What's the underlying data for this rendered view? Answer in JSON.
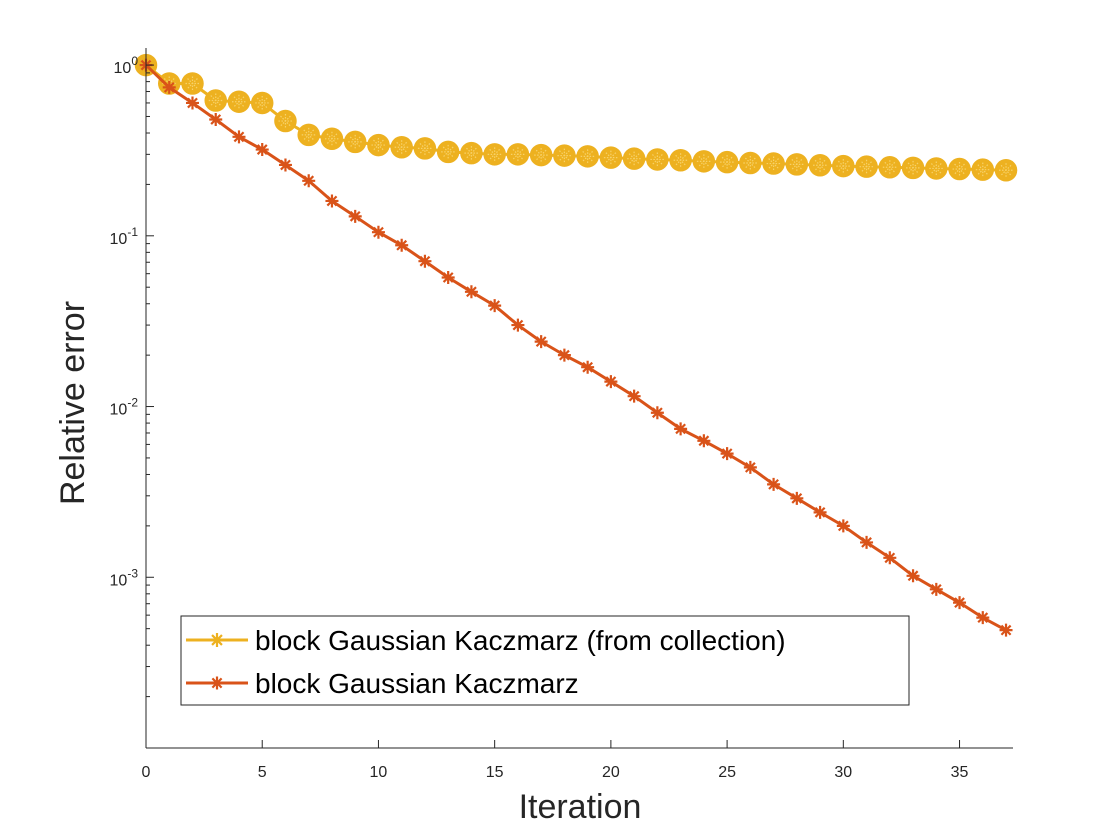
{
  "chart_data": {
    "type": "line",
    "title": "",
    "xlabel": "Iteration",
    "ylabel": "Relative error",
    "xlim": [
      0,
      37.3
    ],
    "ylim_log10": [
      -4.0,
      0.1
    ],
    "yscale": "log",
    "x_ticks": [
      0,
      5,
      10,
      15,
      20,
      25,
      30,
      35
    ],
    "y_ticks": [
      {
        "exp": 0,
        "base": "10",
        "sup": "0"
      },
      {
        "exp": -1,
        "base": "10",
        "sup": "-1"
      },
      {
        "exp": -2,
        "base": "10",
        "sup": "-2"
      },
      {
        "exp": -3,
        "base": "10",
        "sup": "-3"
      }
    ],
    "grid": false,
    "legend_position": "bottom-left",
    "x": [
      0,
      1,
      2,
      3,
      4,
      5,
      6,
      7,
      8,
      9,
      10,
      11,
      12,
      13,
      14,
      15,
      16,
      17,
      18,
      19,
      20,
      21,
      22,
      23,
      24,
      25,
      26,
      27,
      28,
      29,
      30,
      31,
      32,
      33,
      34,
      35,
      36,
      37
    ],
    "series": [
      {
        "name": "block Gaussian Kaczmarz (from collection)",
        "color": "#EDB120",
        "marker": "circle-star",
        "values": [
          1.0,
          0.78,
          0.78,
          0.62,
          0.61,
          0.6,
          0.47,
          0.39,
          0.37,
          0.355,
          0.34,
          0.33,
          0.325,
          0.31,
          0.305,
          0.3,
          0.3,
          0.297,
          0.295,
          0.292,
          0.287,
          0.283,
          0.28,
          0.277,
          0.273,
          0.27,
          0.267,
          0.265,
          0.262,
          0.259,
          0.256,
          0.254,
          0.252,
          0.25,
          0.248,
          0.246,
          0.244,
          0.242
        ]
      },
      {
        "name": "block Gaussian Kaczmarz",
        "color": "#D95319",
        "marker": "star",
        "values": [
          1.0,
          0.74,
          0.6,
          0.48,
          0.38,
          0.32,
          0.26,
          0.21,
          0.16,
          0.13,
          0.105,
          0.088,
          0.071,
          0.057,
          0.047,
          0.039,
          0.03,
          0.024,
          0.02,
          0.017,
          0.014,
          0.0115,
          0.0092,
          0.0074,
          0.0063,
          0.0053,
          0.0044,
          0.0035,
          0.0029,
          0.0024,
          0.002,
          0.0016,
          0.0013,
          0.00102,
          0.00085,
          0.00071,
          0.00058,
          0.00049
        ]
      }
    ]
  }
}
